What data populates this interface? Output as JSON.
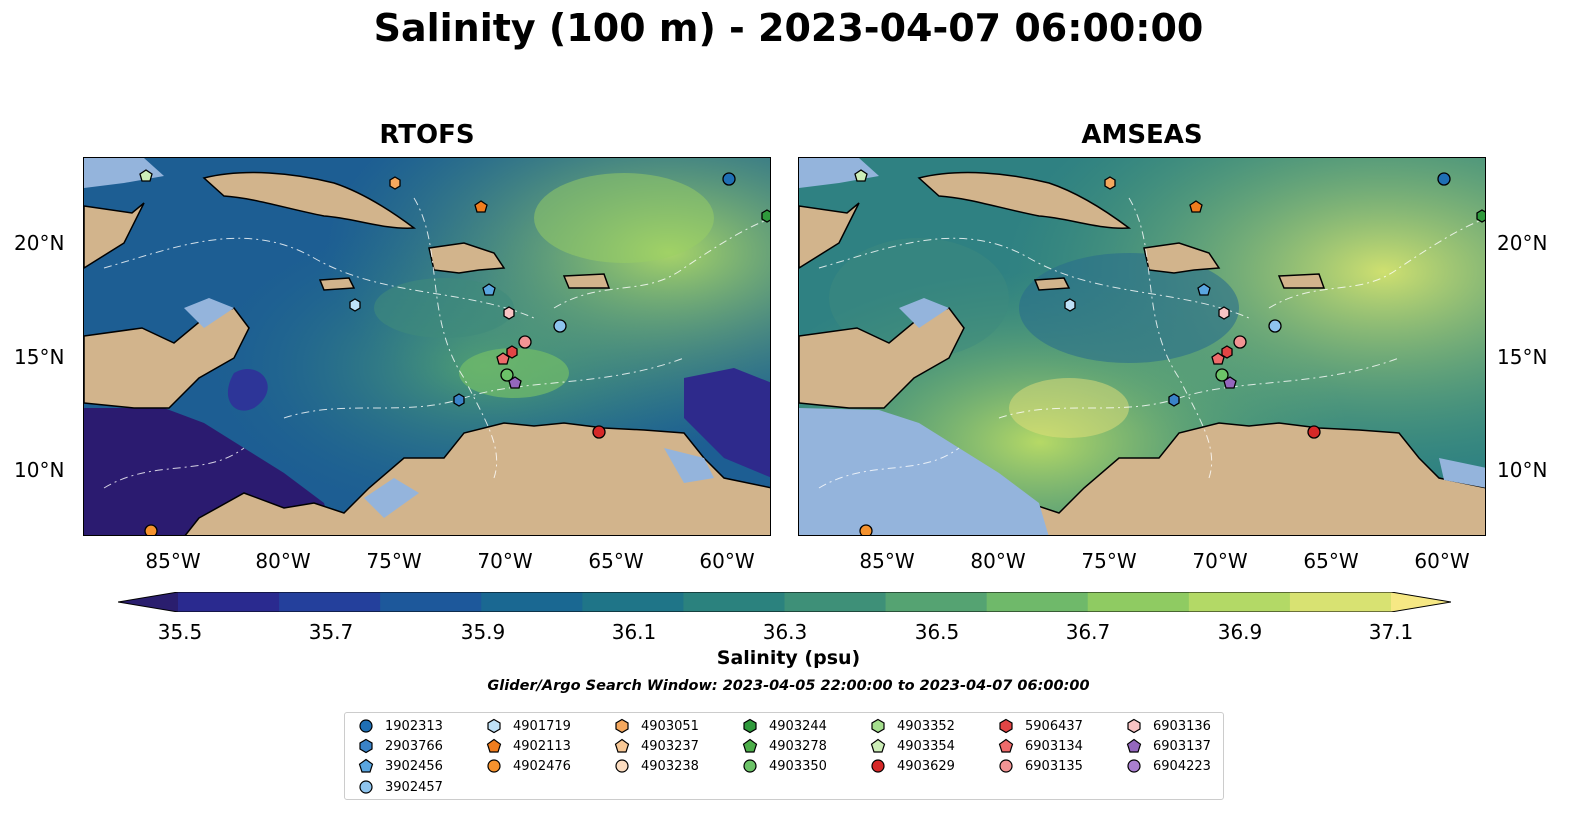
{
  "title": "Salinity (100 m) - 2023-04-07 06:00:00",
  "panels": [
    {
      "title": "RTOFS"
    },
    {
      "title": "AMSEAS"
    }
  ],
  "axes": {
    "lat_labels": [
      "20°N",
      "15°N",
      "10°N"
    ],
    "lon_labels": [
      "85°W",
      "80°W",
      "75°W",
      "70°W",
      "65°W",
      "60°W"
    ]
  },
  "colorbar": {
    "label": "Salinity (psu)",
    "min": 35.4,
    "max": 37.2,
    "ticks": [
      "35.5",
      "35.7",
      "35.9",
      "36.1",
      "36.3",
      "36.5",
      "36.7",
      "36.9",
      "37.1"
    ],
    "colors": [
      "#2a1e6e",
      "#2a2a8f",
      "#24409c",
      "#1d589b",
      "#1a6892",
      "#1f7588",
      "#2b827e",
      "#3e9078",
      "#55a372",
      "#6fb96a",
      "#8fcb62",
      "#b3d966",
      "#d8e272",
      "#f6e884"
    ],
    "extend": "both"
  },
  "search_window": "Glider/Argo Search Window: 2023-04-05 22:00:00 to 2023-04-07 06:00:00",
  "legend": {
    "columns": [
      [
        {
          "id": "1902313",
          "marker": "circle",
          "color": "#1f6fb4"
        },
        {
          "id": "2903766",
          "marker": "hexagon",
          "color": "#3a83c8"
        },
        {
          "id": "3902456",
          "marker": "pentagon",
          "color": "#5aa6e0"
        },
        {
          "id": "3902457",
          "marker": "circle",
          "color": "#8ec4ee"
        }
      ],
      [
        {
          "id": "4901719",
          "marker": "hexagon",
          "color": "#bfe1f7"
        },
        {
          "id": "4902113",
          "marker": "pentagon",
          "color": "#f07d1e"
        },
        {
          "id": "4902476",
          "marker": "circle",
          "color": "#f5922e"
        }
      ],
      [
        {
          "id": "4903051",
          "marker": "hexagon",
          "color": "#f5a85e"
        },
        {
          "id": "4903237",
          "marker": "pentagon",
          "color": "#f8c896"
        },
        {
          "id": "4903238",
          "marker": "circle",
          "color": "#fbdcc0"
        }
      ],
      [
        {
          "id": "4903244",
          "marker": "hexagon",
          "color": "#2f9a3c"
        },
        {
          "id": "4903278",
          "marker": "pentagon",
          "color": "#4cae4a"
        },
        {
          "id": "4903350",
          "marker": "circle",
          "color": "#6cc368"
        }
      ],
      [
        {
          "id": "4903352",
          "marker": "hexagon",
          "color": "#a5df8e"
        },
        {
          "id": "4903354",
          "marker": "pentagon",
          "color": "#cdeeb8"
        },
        {
          "id": "4903629",
          "marker": "circle",
          "color": "#d62828"
        }
      ],
      [
        {
          "id": "5906437",
          "marker": "hexagon",
          "color": "#e24545"
        },
        {
          "id": "6903134",
          "marker": "pentagon",
          "color": "#ee6b6b"
        },
        {
          "id": "6903135",
          "marker": "circle",
          "color": "#f29494"
        }
      ],
      [
        {
          "id": "6903136",
          "marker": "hexagon",
          "color": "#f8c4c4"
        },
        {
          "id": "6903137",
          "marker": "pentagon",
          "color": "#9467bd"
        },
        {
          "id": "6904223",
          "marker": "circle",
          "color": "#a97fcf"
        }
      ]
    ]
  }
}
